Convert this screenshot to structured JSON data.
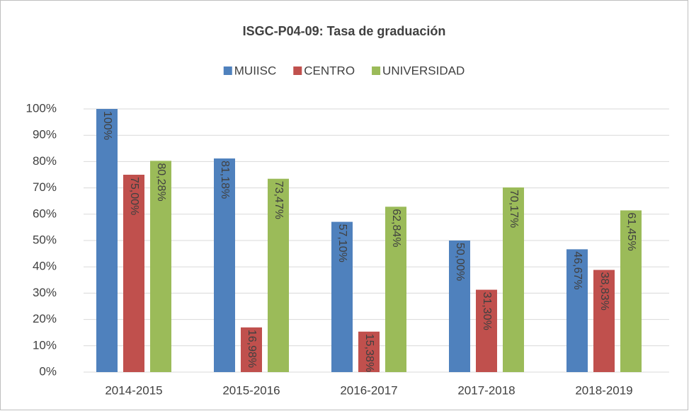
{
  "chart_data": {
    "type": "bar",
    "title": "ISGC-P04-09: Tasa de graduación",
    "categories": [
      "2014-2015",
      "2015-2016",
      "2016-2017",
      "2017-2018",
      "2018-2019"
    ],
    "series": [
      {
        "name": "MUIISC",
        "color": "#4f81bd",
        "values": [
          100,
          81.18,
          57.1,
          50.0,
          46.67
        ],
        "value_labels": [
          "100%",
          "81,18%",
          "57,10%",
          "50,00%",
          "46,67%"
        ]
      },
      {
        "name": "CENTRO",
        "color": "#c0504d",
        "values": [
          75.0,
          16.98,
          15.38,
          31.3,
          38.83
        ],
        "value_labels": [
          "75,00%",
          "16,98%",
          "15,38%",
          "31,30%",
          "38,83%"
        ]
      },
      {
        "name": "UNIVERSIDAD",
        "color": "#9bbb59",
        "values": [
          80.28,
          73.47,
          62.84,
          70.17,
          61.45
        ],
        "value_labels": [
          "80,28%",
          "73,47%",
          "62,84%",
          "70,17%",
          "61,45%"
        ]
      }
    ],
    "ylim": [
      0,
      100
    ],
    "yticks": [
      {
        "value": 0,
        "label": "0%"
      },
      {
        "value": 10,
        "label": "10%"
      },
      {
        "value": 20,
        "label": "20%"
      },
      {
        "value": 30,
        "label": "30%"
      },
      {
        "value": 40,
        "label": "40%"
      },
      {
        "value": 50,
        "label": "50%"
      },
      {
        "value": 60,
        "label": "60%"
      },
      {
        "value": 70,
        "label": "70%"
      },
      {
        "value": 80,
        "label": "80%"
      },
      {
        "value": 90,
        "label": "90%"
      },
      {
        "value": 100,
        "label": "100%"
      }
    ],
    "grid": true,
    "legend": "top"
  }
}
